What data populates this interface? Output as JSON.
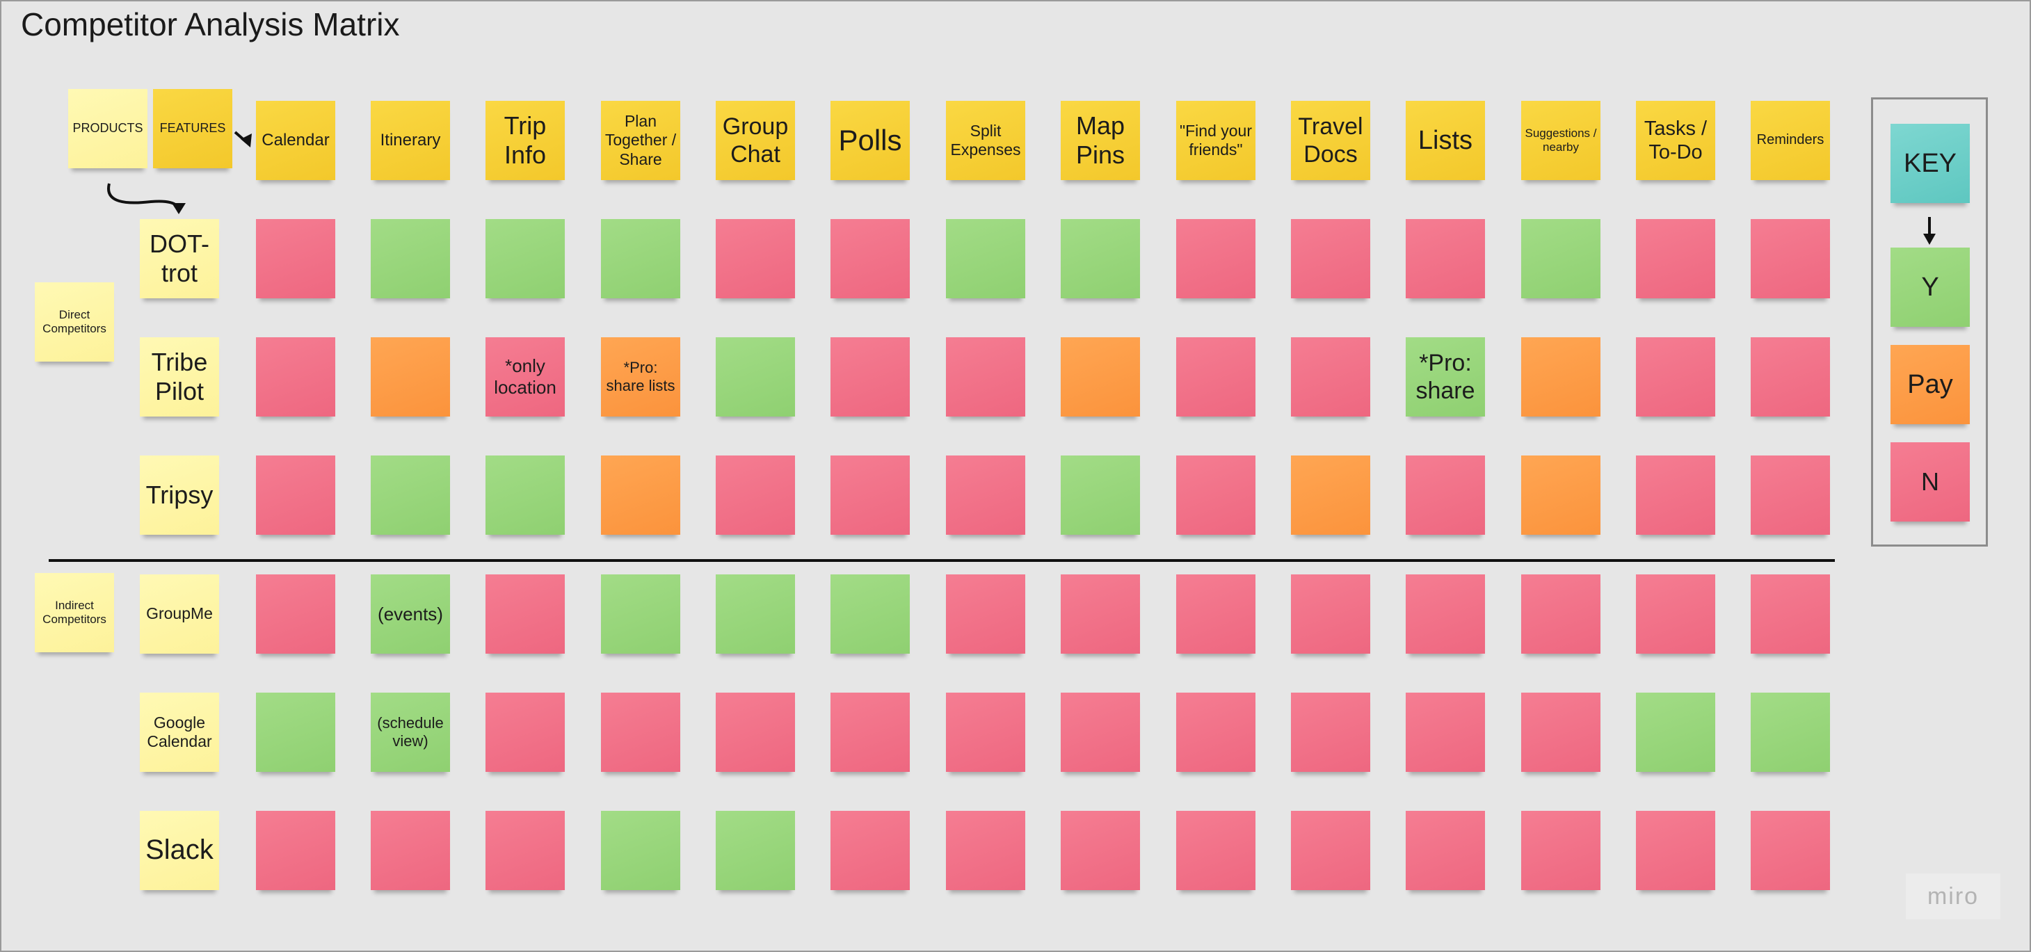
{
  "title": "Competitor Analysis Matrix",
  "labels": {
    "products": "PRODUCTS",
    "features": "FEATURES",
    "direct": "Direct Competitors",
    "indirect": "Indirect Competitors"
  },
  "features": [
    "Calendar",
    "Itinerary",
    "Trip Info",
    "Plan Together / Share",
    "Group Chat",
    "Polls",
    "Split Expenses",
    "Map Pins",
    "\"Find your friends\"",
    "Travel Docs",
    "Lists",
    "Suggestions / nearby",
    "Tasks / To-Do",
    "Reminders"
  ],
  "products": [
    {
      "name": "DOT-trot",
      "group": "direct",
      "cells": [
        {
          "status": "N",
          "note": ""
        },
        {
          "status": "Y",
          "note": ""
        },
        {
          "status": "Y",
          "note": ""
        },
        {
          "status": "Y",
          "note": ""
        },
        {
          "status": "N",
          "note": ""
        },
        {
          "status": "N",
          "note": ""
        },
        {
          "status": "Y",
          "note": ""
        },
        {
          "status": "Y",
          "note": ""
        },
        {
          "status": "N",
          "note": ""
        },
        {
          "status": "N",
          "note": ""
        },
        {
          "status": "N",
          "note": ""
        },
        {
          "status": "Y",
          "note": ""
        },
        {
          "status": "N",
          "note": ""
        },
        {
          "status": "N",
          "note": ""
        }
      ]
    },
    {
      "name": "Tribe Pilot",
      "group": "direct",
      "cells": [
        {
          "status": "N",
          "note": ""
        },
        {
          "status": "Pay",
          "note": ""
        },
        {
          "status": "N",
          "note": "*only location"
        },
        {
          "status": "Pay",
          "note": "*Pro: share lists"
        },
        {
          "status": "Y",
          "note": ""
        },
        {
          "status": "N",
          "note": ""
        },
        {
          "status": "N",
          "note": ""
        },
        {
          "status": "Pay",
          "note": ""
        },
        {
          "status": "N",
          "note": ""
        },
        {
          "status": "N",
          "note": ""
        },
        {
          "status": "Y",
          "note": "*Pro: share"
        },
        {
          "status": "Pay",
          "note": ""
        },
        {
          "status": "N",
          "note": ""
        },
        {
          "status": "N",
          "note": ""
        }
      ]
    },
    {
      "name": "Tripsy",
      "group": "direct",
      "cells": [
        {
          "status": "N",
          "note": ""
        },
        {
          "status": "Y",
          "note": ""
        },
        {
          "status": "Y",
          "note": ""
        },
        {
          "status": "Pay",
          "note": ""
        },
        {
          "status": "N",
          "note": ""
        },
        {
          "status": "N",
          "note": ""
        },
        {
          "status": "N",
          "note": ""
        },
        {
          "status": "Y",
          "note": ""
        },
        {
          "status": "N",
          "note": ""
        },
        {
          "status": "Pay",
          "note": ""
        },
        {
          "status": "N",
          "note": ""
        },
        {
          "status": "Pay",
          "note": ""
        },
        {
          "status": "N",
          "note": ""
        },
        {
          "status": "N",
          "note": ""
        }
      ]
    },
    {
      "name": "GroupMe",
      "group": "indirect",
      "cells": [
        {
          "status": "N",
          "note": ""
        },
        {
          "status": "Y",
          "note": "(events)"
        },
        {
          "status": "N",
          "note": ""
        },
        {
          "status": "Y",
          "note": ""
        },
        {
          "status": "Y",
          "note": ""
        },
        {
          "status": "Y",
          "note": ""
        },
        {
          "status": "N",
          "note": ""
        },
        {
          "status": "N",
          "note": ""
        },
        {
          "status": "N",
          "note": ""
        },
        {
          "status": "N",
          "note": ""
        },
        {
          "status": "N",
          "note": ""
        },
        {
          "status": "N",
          "note": ""
        },
        {
          "status": "N",
          "note": ""
        },
        {
          "status": "N",
          "note": ""
        }
      ]
    },
    {
      "name": "Google Calendar",
      "group": "indirect",
      "cells": [
        {
          "status": "Y",
          "note": ""
        },
        {
          "status": "Y",
          "note": "(schedule view)"
        },
        {
          "status": "N",
          "note": ""
        },
        {
          "status": "N",
          "note": ""
        },
        {
          "status": "N",
          "note": ""
        },
        {
          "status": "N",
          "note": ""
        },
        {
          "status": "N",
          "note": ""
        },
        {
          "status": "N",
          "note": ""
        },
        {
          "status": "N",
          "note": ""
        },
        {
          "status": "N",
          "note": ""
        },
        {
          "status": "N",
          "note": ""
        },
        {
          "status": "N",
          "note": ""
        },
        {
          "status": "Y",
          "note": ""
        },
        {
          "status": "Y",
          "note": ""
        }
      ]
    },
    {
      "name": "Slack",
      "group": "indirect",
      "cells": [
        {
          "status": "N",
          "note": ""
        },
        {
          "status": "N",
          "note": ""
        },
        {
          "status": "N",
          "note": ""
        },
        {
          "status": "Y",
          "note": ""
        },
        {
          "status": "Y",
          "note": ""
        },
        {
          "status": "N",
          "note": ""
        },
        {
          "status": "N",
          "note": ""
        },
        {
          "status": "N",
          "note": ""
        },
        {
          "status": "N",
          "note": ""
        },
        {
          "status": "N",
          "note": ""
        },
        {
          "status": "N",
          "note": ""
        },
        {
          "status": "N",
          "note": ""
        },
        {
          "status": "N",
          "note": ""
        },
        {
          "status": "N",
          "note": ""
        }
      ]
    }
  ],
  "key": {
    "title": "KEY",
    "items": [
      {
        "status": "Y",
        "label": "Y"
      },
      {
        "status": "Pay",
        "label": "Pay"
      },
      {
        "status": "N",
        "label": "N"
      }
    ]
  },
  "colors": {
    "Y": "#97d47a",
    "Pay": "#fd9b45",
    "N": "#f07187",
    "header": "#f6cd32",
    "product": "#fef5a6",
    "key": "#6ccdc7"
  },
  "watermark": "miro"
}
